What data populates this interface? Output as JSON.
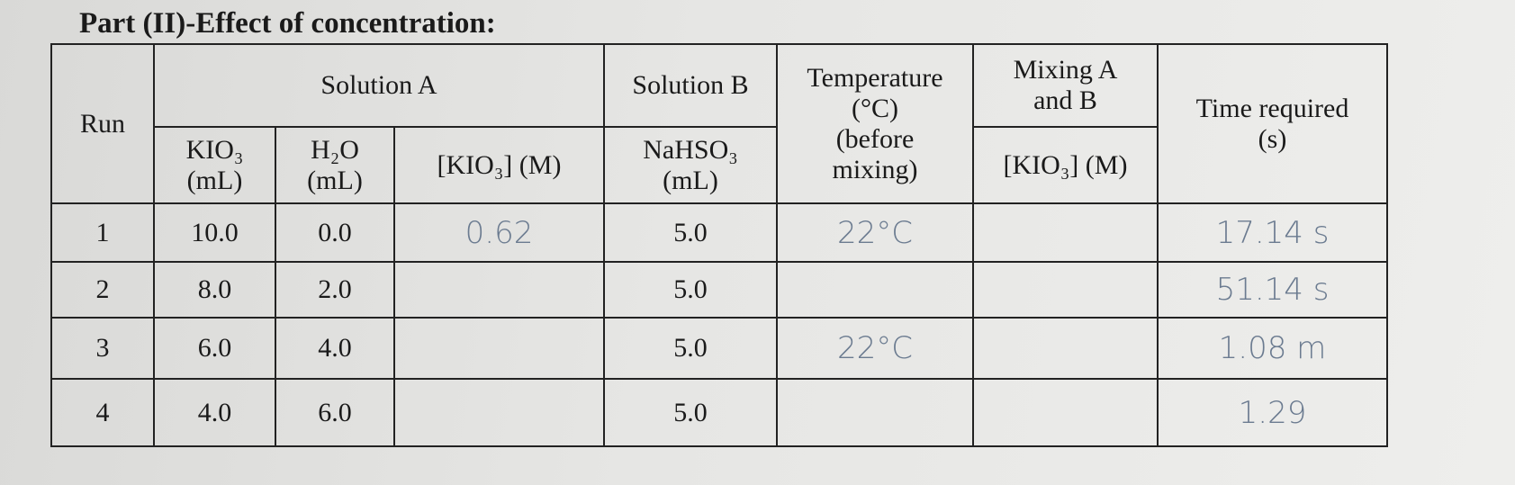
{
  "title": "Part (II)-Effect of concentration:",
  "table": {
    "header": {
      "run": "Run",
      "solution_a": "Solution A",
      "solution_b": "Solution B",
      "temperature": "Temperature\n(°C)\n(before\nmixing)",
      "mixing": "Mixing A\nand B",
      "time": "Time required\n(s)",
      "kio3_ml": "KIO₃\n(mL)",
      "h2o_ml": "H₂O\n(mL)",
      "kio3_m": "[KIO₃] (M)",
      "nahso3_ml": "NaHSO₃\n(mL)",
      "mix_kio3_m": "[KIO₃] (M)"
    },
    "rows": [
      {
        "run": "1",
        "kio3_ml": "10.0",
        "h2o_ml": "0.0",
        "kio3_m": "0.62",
        "nahso3_ml": "5.0",
        "temperature": "22°C",
        "time": "17.14 s"
      },
      {
        "run": "2",
        "kio3_ml": "8.0",
        "h2o_ml": "2.0",
        "nahso3_ml": "5.0",
        "time": "51.14 s"
      },
      {
        "run": "3",
        "kio3_ml": "6.0",
        "h2o_ml": "4.0",
        "nahso3_ml": "5.0",
        "temperature": "22°C",
        "time": "1.08 m"
      },
      {
        "run": "4",
        "kio3_ml": "4.0",
        "h2o_ml": "6.0",
        "nahso3_ml": "5.0",
        "time": "1.29"
      }
    ]
  }
}
